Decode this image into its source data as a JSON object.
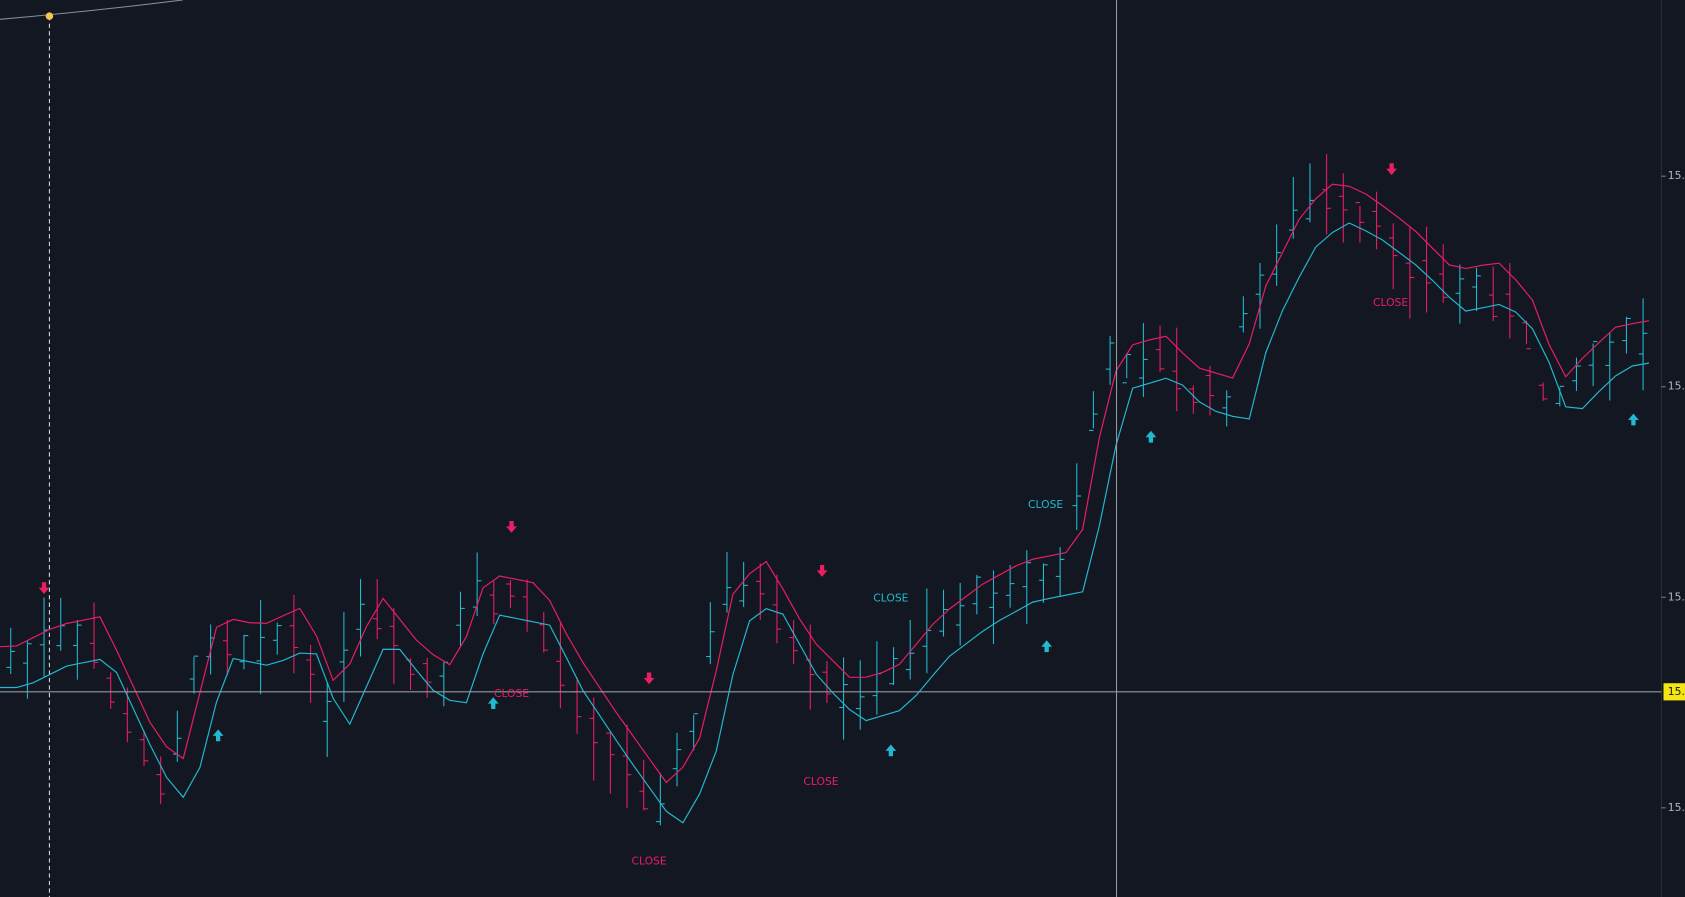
{
  "price_axis": {
    "labels": [
      "15.",
      "15.",
      "15.",
      "15."
    ],
    "cursor_price": "15."
  },
  "annotations": [
    {
      "text": "CLOSE"
    },
    {
      "text": "CLOSE"
    },
    {
      "text": "CLOSE"
    },
    {
      "text": "CLOSE"
    },
    {
      "text": "CLOSE"
    },
    {
      "text": "CLOSE"
    }
  ]
}
